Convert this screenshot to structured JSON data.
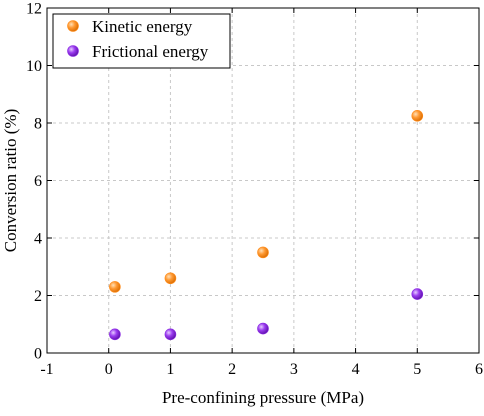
{
  "chart_data": {
    "type": "scatter",
    "title": "",
    "xlabel": "Pre-confining pressure (MPa)",
    "ylabel": "Conversion ratio (%)",
    "xlim": [
      -1,
      6
    ],
    "ylim": [
      0,
      12
    ],
    "xticks": [
      -1,
      0,
      1,
      2,
      3,
      4,
      5,
      6
    ],
    "yticks": [
      0,
      2,
      4,
      6,
      8,
      10,
      12
    ],
    "grid": true,
    "grid_style": "dashed",
    "legend_position": "top-left",
    "series": [
      {
        "name": "Kinetic energy",
        "color": "#ff8c1a",
        "x": [
          0.1,
          1.0,
          2.5,
          5.0
        ],
        "y": [
          2.3,
          2.6,
          3.5,
          8.25
        ]
      },
      {
        "name": "Frictional energy",
        "color": "#8a2be2",
        "x": [
          0.1,
          1.0,
          2.5,
          5.0
        ],
        "y": [
          0.65,
          0.65,
          0.85,
          2.05
        ]
      }
    ]
  }
}
